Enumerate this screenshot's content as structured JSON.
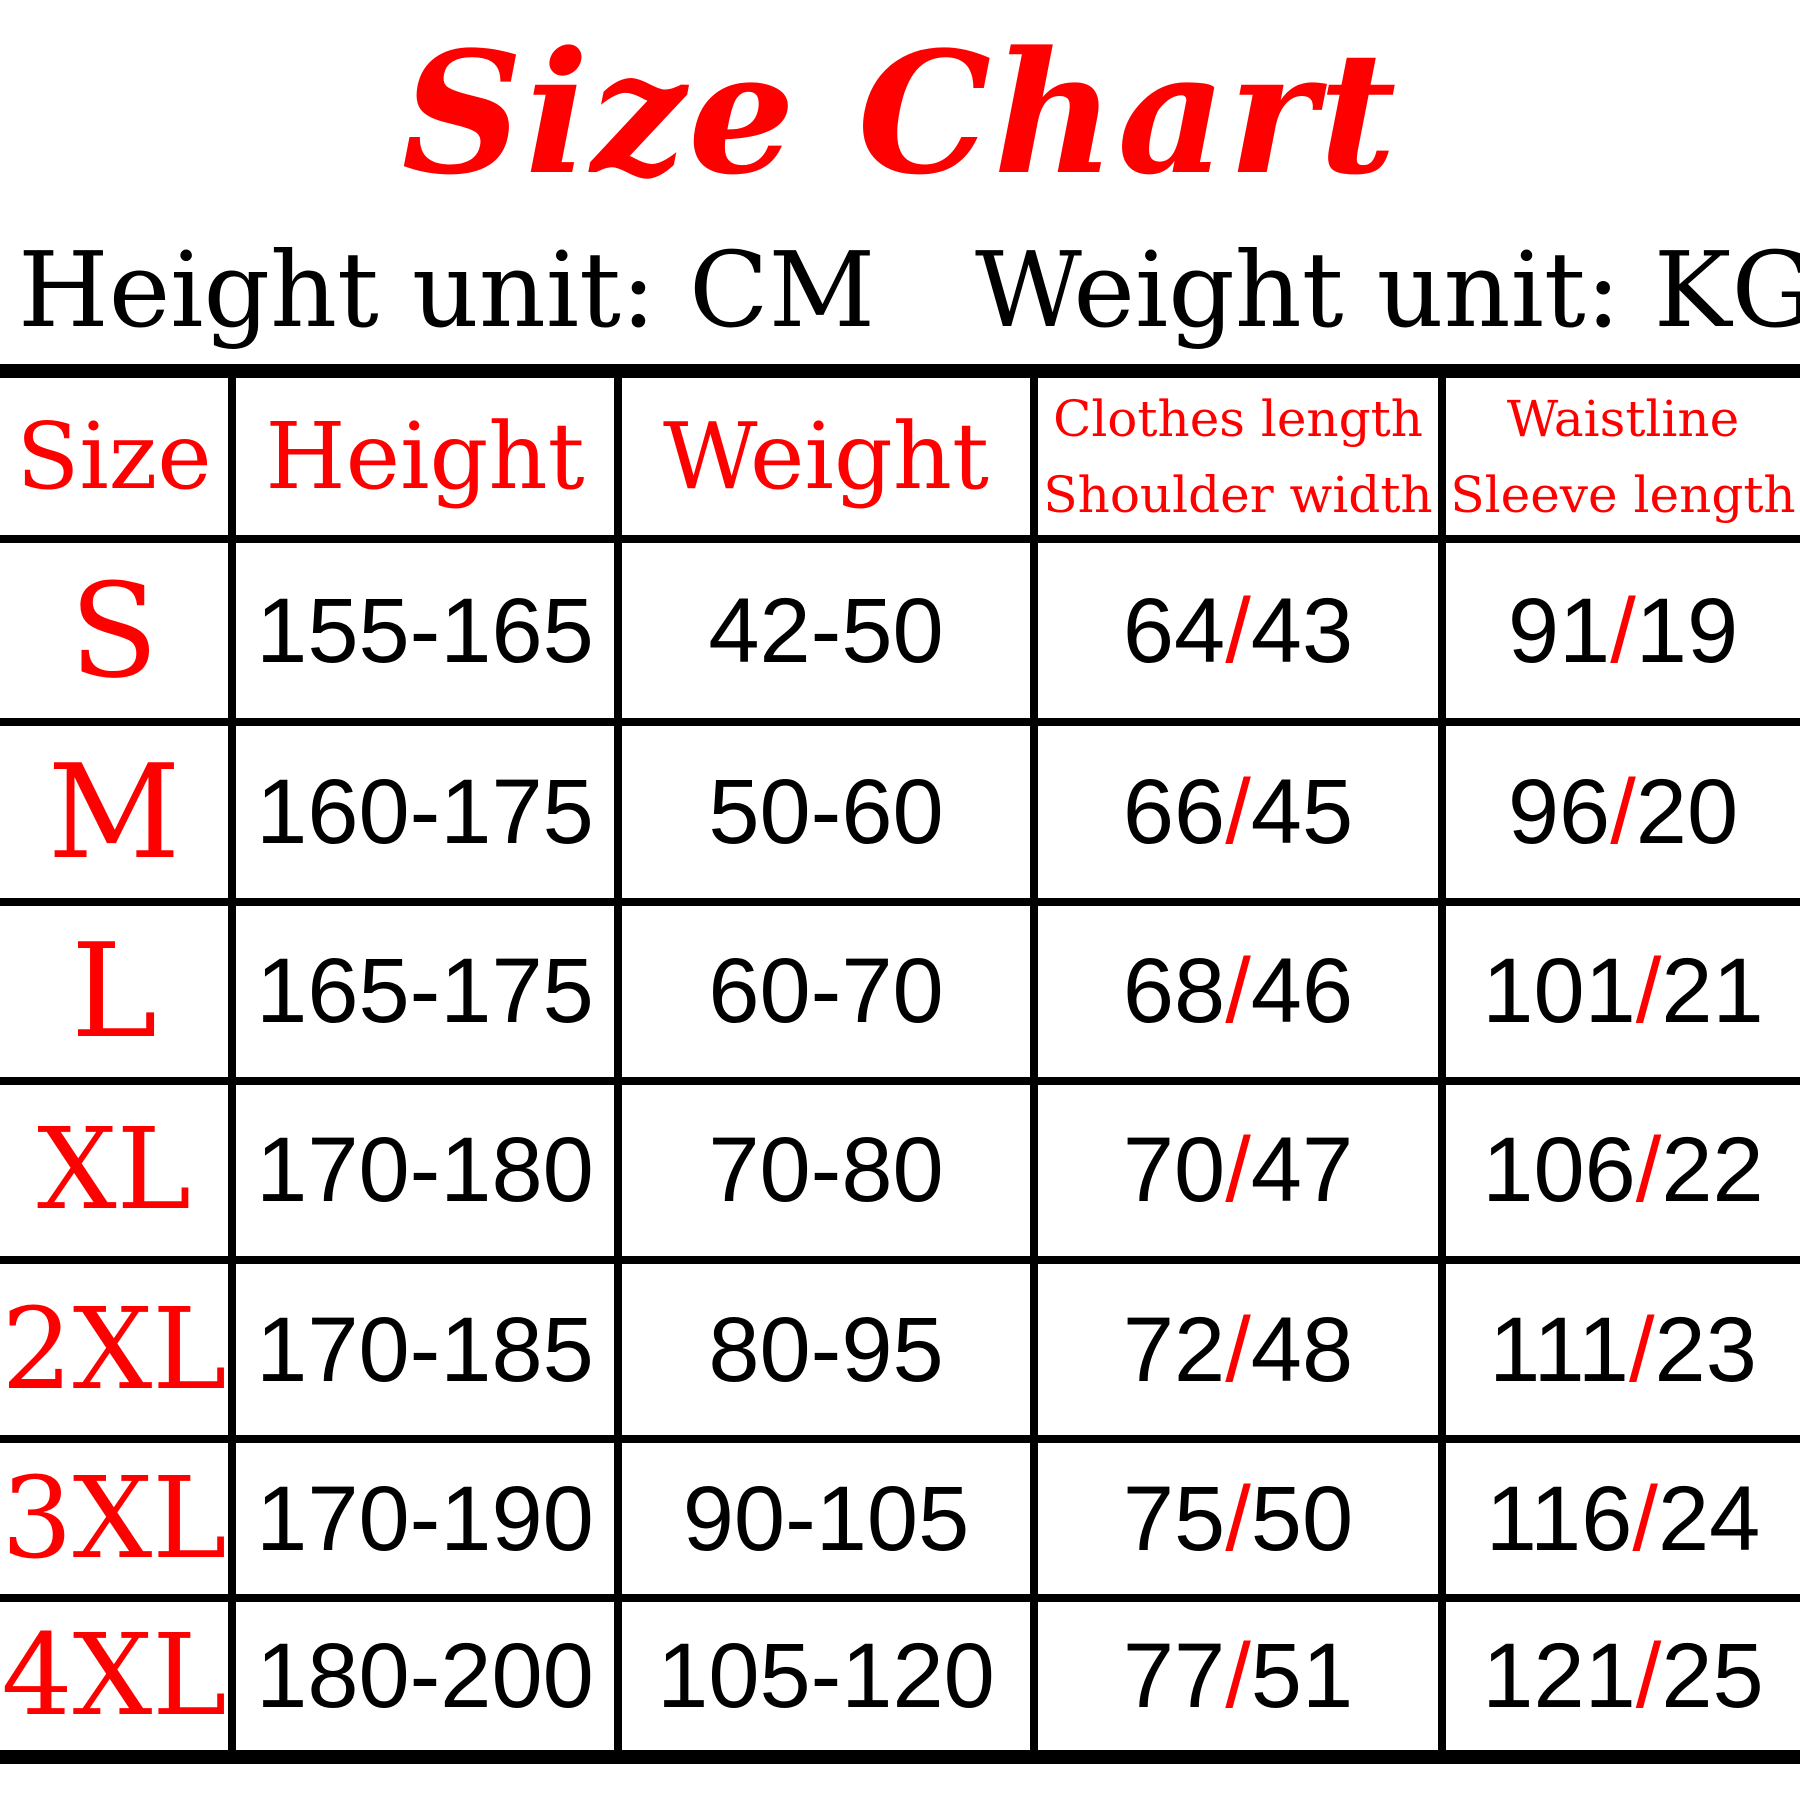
{
  "title": "Size Chart",
  "units": {
    "height": "Height unit: CM",
    "weight": "Weight unit: KG"
  },
  "colors": {
    "accent": "#ff0000",
    "text": "#000000",
    "border": "#000000",
    "background": "#ffffff"
  },
  "table": {
    "headers": {
      "size": "Size",
      "height": "Height",
      "weight": "Weight",
      "col4_line1": "Clothes length",
      "col4_line2": "Shoulder width",
      "col5_line1": "Waistline",
      "col5_line2": "Sleeve length"
    },
    "rows": [
      {
        "size": "S",
        "height": "155-165",
        "weight": "42-50",
        "clothes_length": "64",
        "shoulder_width": "43",
        "waistline": "91",
        "sleeve_length": "19"
      },
      {
        "size": "M",
        "height": "160-175",
        "weight": "50-60",
        "clothes_length": "66",
        "shoulder_width": "45",
        "waistline": "96",
        "sleeve_length": "20"
      },
      {
        "size": "L",
        "height": "165-175",
        "weight": "60-70",
        "clothes_length": "68",
        "shoulder_width": "46",
        "waistline": "101",
        "sleeve_length": "21"
      },
      {
        "size": "XL",
        "height": "170-180",
        "weight": "70-80",
        "clothes_length": "70",
        "shoulder_width": "47",
        "waistline": "106",
        "sleeve_length": "22"
      },
      {
        "size": "2XL",
        "height": "170-185",
        "weight": "80-95",
        "clothes_length": "72",
        "shoulder_width": "48",
        "waistline": "111",
        "sleeve_length": "23"
      },
      {
        "size": "3XL",
        "height": "170-190",
        "weight": "90-105",
        "clothes_length": "75",
        "shoulder_width": "50",
        "waistline": "116",
        "sleeve_length": "24"
      },
      {
        "size": "4XL",
        "height": "180-200",
        "weight": "105-120",
        "clothes_length": "77",
        "shoulder_width": "51",
        "waistline": "121",
        "sleeve_length": "25"
      }
    ],
    "separator": "/"
  }
}
